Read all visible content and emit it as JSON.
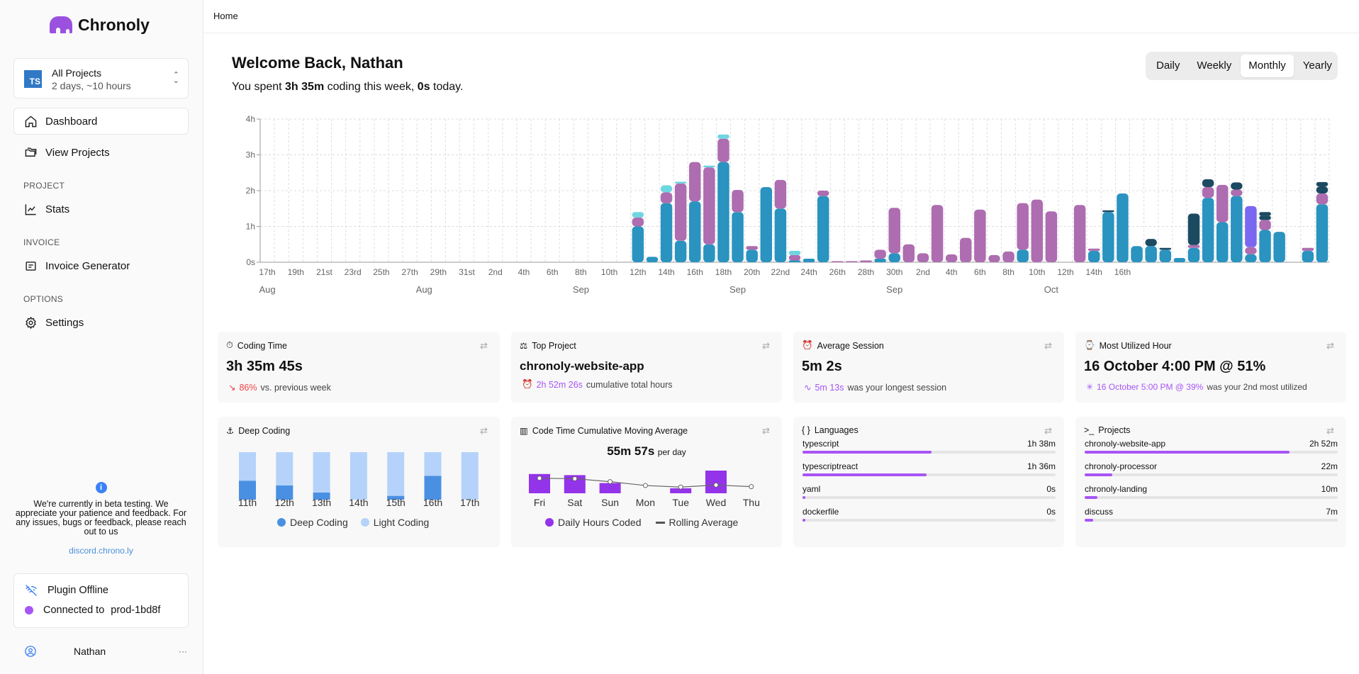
{
  "app": {
    "name": "Chronoly"
  },
  "project_select": {
    "badge": "TS",
    "title": "All Projects",
    "subtitle": "2 days, ~10 hours"
  },
  "nav": {
    "dashboard": "Dashboard",
    "view_projects": "View Projects",
    "project_section": "PROJECT",
    "stats": "Stats",
    "invoice_section": "INVOICE",
    "invoice_generator": "Invoice Generator",
    "options_section": "OPTIONS",
    "settings": "Settings"
  },
  "beta": {
    "icon": "i",
    "text": "We're currently in beta testing. We appreciate your patience and feedback. For any issues, bugs or feedback, please reach out to us",
    "link": "discord.chrono.ly"
  },
  "plugin": {
    "status": "Plugin Offline",
    "connected_label": "Connected to",
    "server": "prod-1bd8f"
  },
  "user": {
    "name": "Nathan",
    "more": "···"
  },
  "breadcrumb": "Home",
  "header": {
    "title": "Welcome Back, Nathan",
    "prefix": "You spent ",
    "week_time": "3h 35m",
    "middle": " coding this week, ",
    "today_time": "0s",
    "suffix": " today."
  },
  "range_tabs": [
    "Daily",
    "Weekly",
    "Monthly",
    "Yearly"
  ],
  "range_selected": "Monthly",
  "colors": {
    "teal": "#2a93bf",
    "purple": "#ad6db0",
    "cyan": "#6dd6e0",
    "navy": "#1c4a61",
    "violet": "#7b68f0",
    "accent": "#a855f7"
  },
  "chart_data": [
    {
      "type": "bar",
      "stacked": true,
      "x_tick_labels": [
        "17th",
        "19th",
        "21st",
        "23rd",
        "25th",
        "27th",
        "29th",
        "31st",
        "2nd",
        "4th",
        "6th",
        "8th",
        "10th",
        "12th",
        "14th",
        "16th",
        "18th",
        "20th",
        "22nd",
        "24th",
        "26th",
        "28th",
        "30th",
        "2nd",
        "4th",
        "6th",
        "8th",
        "10th",
        "12th",
        "14th",
        "16th"
      ],
      "month_labels": [
        "Aug",
        "Aug",
        "Sep",
        "Sep",
        "Sep",
        "Oct"
      ],
      "yticks": [
        "0s",
        "1h",
        "2h",
        "3h",
        "4h"
      ],
      "ylim": [
        0,
        4
      ],
      "grid": true,
      "series": [],
      "bars": [
        [],
        [],
        [],
        [],
        [],
        [],
        [],
        [],
        [],
        [],
        [],
        [],
        [],
        [],
        [],
        [],
        [],
        [],
        [],
        [],
        [],
        [],
        [],
        [],
        [],
        [],
        [
          {
            "c": "teal",
            "v": 1.0
          },
          {
            "c": "purple",
            "v": 0.25
          },
          {
            "c": "cyan",
            "v": 0.15
          }
        ],
        [
          {
            "c": "teal",
            "v": 0.15
          }
        ],
        [
          {
            "c": "teal",
            "v": 1.65
          },
          {
            "c": "purple",
            "v": 0.3
          },
          {
            "c": "cyan",
            "v": 0.2
          }
        ],
        [
          {
            "c": "teal",
            "v": 0.6
          },
          {
            "c": "purple",
            "v": 1.6
          },
          {
            "c": "cyan",
            "v": 0.05
          }
        ],
        [
          {
            "c": "teal",
            "v": 1.7
          },
          {
            "c": "purple",
            "v": 1.1
          }
        ],
        [
          {
            "c": "teal",
            "v": 0.5
          },
          {
            "c": "purple",
            "v": 2.15
          },
          {
            "c": "cyan",
            "v": 0.05
          }
        ],
        [
          {
            "c": "teal",
            "v": 2.8
          },
          {
            "c": "purple",
            "v": 0.65
          },
          {
            "c": "cyan",
            "v": 0.12
          }
        ],
        [
          {
            "c": "teal",
            "v": 1.4
          },
          {
            "c": "purple",
            "v": 0.62
          }
        ],
        [
          {
            "c": "teal",
            "v": 0.35
          },
          {
            "c": "purple",
            "v": 0.1
          }
        ],
        [
          {
            "c": "teal",
            "v": 2.1
          }
        ],
        [
          {
            "c": "teal",
            "v": 1.5
          },
          {
            "c": "purple",
            "v": 0.8
          }
        ],
        [
          {
            "c": "teal",
            "v": 0.05
          },
          {
            "c": "purple",
            "v": 0.15
          },
          {
            "c": "cyan",
            "v": 0.12
          }
        ],
        [
          {
            "c": "teal",
            "v": 0.1
          }
        ],
        [
          {
            "c": "teal",
            "v": 1.85
          },
          {
            "c": "purple",
            "v": 0.15
          }
        ],
        [
          {
            "c": "purple",
            "v": 0.03
          }
        ],
        [
          {
            "c": "purple",
            "v": 0.03
          }
        ],
        [
          {
            "c": "purple",
            "v": 0.05
          }
        ],
        [
          {
            "c": "teal",
            "v": 0.1
          },
          {
            "c": "purple",
            "v": 0.25
          }
        ],
        [
          {
            "c": "teal",
            "v": 0.25
          },
          {
            "c": "purple",
            "v": 1.27
          }
        ],
        [
          {
            "c": "purple",
            "v": 0.5
          }
        ],
        [
          {
            "c": "purple",
            "v": 0.25
          }
        ],
        [
          {
            "c": "purple",
            "v": 1.6
          }
        ],
        [
          {
            "c": "purple",
            "v": 0.22
          }
        ],
        [
          {
            "c": "purple",
            "v": 0.68
          }
        ],
        [
          {
            "c": "purple",
            "v": 1.47
          }
        ],
        [
          {
            "c": "purple",
            "v": 0.2
          }
        ],
        [
          {
            "c": "purple",
            "v": 0.3
          }
        ],
        [
          {
            "c": "teal",
            "v": 0.35
          },
          {
            "c": "purple",
            "v": 1.3
          }
        ],
        [
          {
            "c": "purple",
            "v": 1.75
          }
        ],
        [
          {
            "c": "purple",
            "v": 1.42
          }
        ],
        [],
        [
          {
            "c": "purple",
            "v": 1.6
          }
        ],
        [
          {
            "c": "teal",
            "v": 0.32
          },
          {
            "c": "purple",
            "v": 0.06
          }
        ],
        [
          {
            "c": "teal",
            "v": 1.4
          },
          {
            "c": "navy",
            "v": 0.05
          }
        ],
        [
          {
            "c": "teal",
            "v": 1.92
          }
        ],
        [
          {
            "c": "teal",
            "v": 0.45
          }
        ],
        [
          {
            "c": "teal",
            "v": 0.45
          },
          {
            "c": "navy",
            "v": 0.2
          }
        ],
        [
          {
            "c": "teal",
            "v": 0.35
          },
          {
            "c": "navy",
            "v": 0.05
          }
        ],
        [
          {
            "c": "teal",
            "v": 0.12
          }
        ],
        [
          {
            "c": "teal",
            "v": 0.4
          },
          {
            "c": "purple",
            "v": 0.08
          },
          {
            "c": "navy",
            "v": 0.88
          }
        ],
        [
          {
            "c": "teal",
            "v": 1.8
          },
          {
            "c": "purple",
            "v": 0.3
          },
          {
            "c": "navy",
            "v": 0.22
          }
        ],
        [
          {
            "c": "teal",
            "v": 1.12
          },
          {
            "c": "purple",
            "v": 1.04
          }
        ],
        [
          {
            "c": "teal",
            "v": 1.85
          },
          {
            "c": "purple",
            "v": 0.18
          },
          {
            "c": "navy",
            "v": 0.2
          }
        ],
        [
          {
            "c": "teal",
            "v": 0.22
          },
          {
            "c": "purple",
            "v": 0.2
          },
          {
            "c": "violet",
            "v": 1.15
          }
        ],
        [
          {
            "c": "teal",
            "v": 0.9
          },
          {
            "c": "purple",
            "v": 0.28
          },
          {
            "c": "navy",
            "v": 0.12
          },
          {
            "c": "navy",
            "v": 0.1
          }
        ],
        [
          {
            "c": "teal",
            "v": 0.85
          }
        ],
        [],
        [
          {
            "c": "teal",
            "v": 0.32
          },
          {
            "c": "purple",
            "v": 0.08
          }
        ],
        [
          {
            "c": "teal",
            "v": 1.62
          },
          {
            "c": "purple",
            "v": 0.3
          },
          {
            "c": "navy",
            "v": 0.2
          },
          {
            "c": "navy",
            "v": 0.12
          }
        ]
      ]
    },
    {
      "type": "bar",
      "stacked": true,
      "categories": [
        "11th",
        "12th",
        "13th",
        "14th",
        "15th",
        "16th",
        "17th"
      ],
      "series": [
        {
          "name": "Deep Coding",
          "color": "#4a90e2",
          "values": [
            0.4,
            0.3,
            0.15,
            0,
            0.08,
            0.5,
            0
          ]
        },
        {
          "name": "Light Coding",
          "color": "#b5d2fa",
          "values": [
            0.6,
            0.7,
            0.85,
            1,
            0.92,
            0.5,
            1
          ]
        }
      ]
    },
    {
      "type": "bar",
      "categories": [
        "Fri",
        "Sat",
        "Sun",
        "Mon",
        "Tue",
        "Wed",
        "Thu"
      ],
      "series": [
        {
          "name": "Daily Hours Coded",
          "color": "#9333ea",
          "values": [
            0.85,
            0.8,
            0.45,
            0,
            0.22,
            1,
            0
          ]
        },
        {
          "name": "Rolling Average",
          "color": "#666",
          "values": [
            0.85,
            0.83,
            0.7,
            0.53,
            0.46,
            0.55,
            0.48
          ]
        }
      ]
    }
  ],
  "cards": {
    "coding_time": {
      "title": "Coding Time",
      "value": "3h 35m 45s",
      "delta": "86%",
      "delta_text": "vs. previous week"
    },
    "top_project": {
      "title": "Top Project",
      "value": "chronoly-website-app",
      "hours": "2h 52m 26s",
      "hours_text": "cumulative total hours"
    },
    "avg_session": {
      "title": "Average Session",
      "value": "5m 2s",
      "longest": "5m 13s",
      "longest_text": "was your longest session"
    },
    "most_hour": {
      "title": "Most Utilized Hour",
      "value": "16 October 4:00 PM @ 51%",
      "second": "16 October 5:00 PM @ 39%",
      "second_text": "was your 2nd most utilized"
    },
    "deep_coding": {
      "title": "Deep Coding",
      "legend_deep": "Deep Coding",
      "legend_light": "Light Coding"
    },
    "moving_avg": {
      "title": "Code Time Cumulative Moving Average",
      "value": "55m 57s",
      "unit": "per day",
      "legend_daily": "Daily Hours Coded",
      "legend_rolling": "Rolling Average"
    },
    "languages": {
      "title": "Languages",
      "items": [
        {
          "name": "typescript",
          "time": "1h 38m",
          "frac": 0.51
        },
        {
          "name": "typescriptreact",
          "time": "1h 36m",
          "frac": 0.49
        },
        {
          "name": "yaml",
          "time": "0s",
          "frac": 0.005
        },
        {
          "name": "dockerfile",
          "time": "0s",
          "frac": 0.005
        }
      ]
    },
    "projects": {
      "title": "Projects",
      "items": [
        {
          "name": "chronoly-website-app",
          "time": "2h 52m",
          "frac": 0.81
        },
        {
          "name": "chronoly-processor",
          "time": "22m",
          "frac": 0.11
        },
        {
          "name": "chronoly-landing",
          "time": "10m",
          "frac": 0.05
        },
        {
          "name": "discuss",
          "time": "7m",
          "frac": 0.035
        }
      ]
    }
  }
}
